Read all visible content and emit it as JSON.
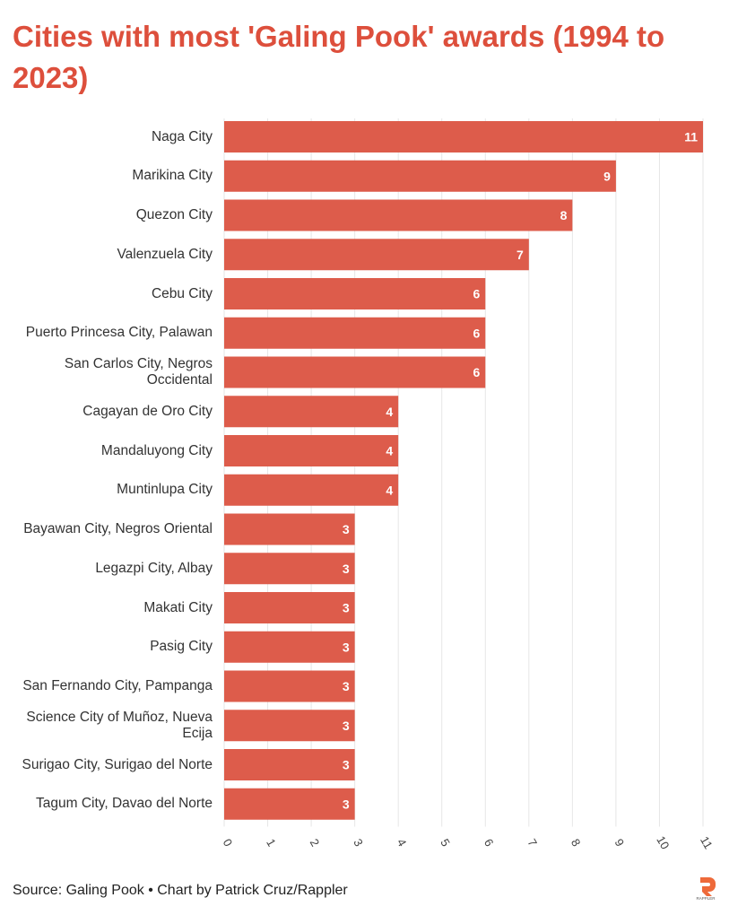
{
  "title": "Cities with most 'Galing Pook' awards (1994 to 2023)",
  "source": "Source: Galing Pook • Chart by Patrick Cruz/Rappler",
  "logo_text": "RAPPLER",
  "colors": {
    "bar": "#dd5c4b",
    "title": "#dd4f3c",
    "grid": "#e6e6e6"
  },
  "chart_data": {
    "type": "bar",
    "orientation": "horizontal",
    "title": "Cities with most 'Galing Pook' awards (1994 to 2023)",
    "xlabel": "",
    "ylabel": "",
    "xlim": [
      0,
      11
    ],
    "ticks": [
      "0",
      "1",
      "2",
      "3",
      "4",
      "5",
      "6",
      "7",
      "8",
      "9",
      "10",
      "11"
    ],
    "grid": true,
    "categories": [
      "Naga City",
      "Marikina City",
      "Quezon City",
      "Valenzuela City",
      "Cebu City",
      "Puerto Princesa City, Palawan",
      "San Carlos City, Negros Occidental",
      "Cagayan de Oro City",
      "Mandaluyong City",
      "Muntinlupa City",
      "Bayawan City, Negros Oriental",
      "Legazpi City, Albay",
      "Makati City",
      "Pasig City",
      "San Fernando City, Pampanga",
      "Science City of Muñoz, Nueva Ecija",
      "Surigao City, Surigao del Norte",
      "Tagum City, Davao del Norte"
    ],
    "values": [
      11,
      9,
      8,
      7,
      6,
      6,
      6,
      4,
      4,
      4,
      3,
      3,
      3,
      3,
      3,
      3,
      3,
      3
    ]
  }
}
